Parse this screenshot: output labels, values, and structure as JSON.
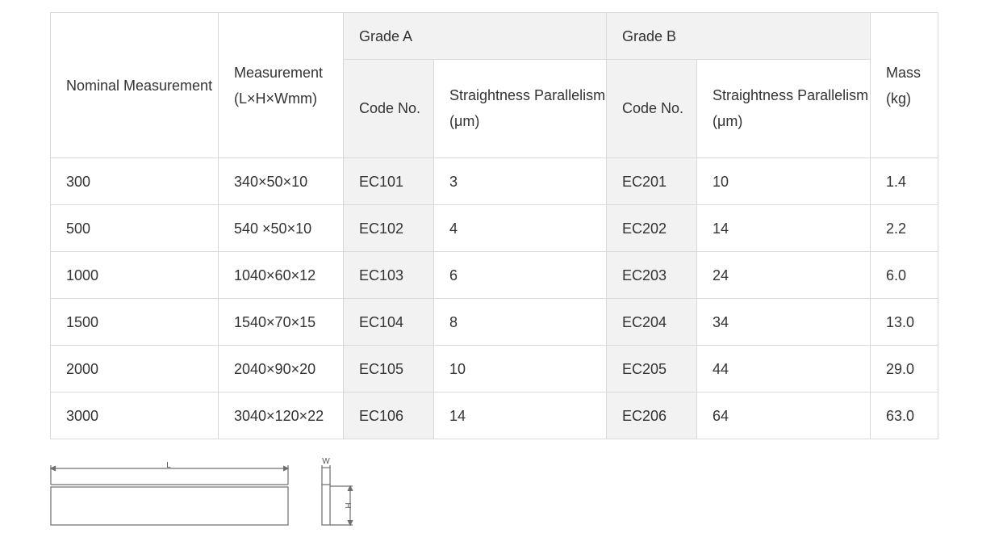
{
  "table": {
    "headers": {
      "nominal": "Nominal Measurement",
      "measurement": "Measurement (L×H×Wmm)",
      "grade_a": "Grade A",
      "grade_b": "Grade B",
      "mass": "Mass (kg)",
      "code": "Code No.",
      "straightness": "Straightness Parallelism (μm)"
    },
    "rows": [
      {
        "nominal": "300",
        "measurement": "340×50×10",
        "a_code": "EC101",
        "a_str": "3",
        "b_code": "EC201",
        "b_str": "10",
        "mass": "1.4"
      },
      {
        "nominal": "500",
        "measurement": "540 ×50×10",
        "a_code": "EC102",
        "a_str": "4",
        "b_code": "EC202",
        "b_str": "14",
        "mass": "2.2"
      },
      {
        "nominal": "1000",
        "measurement": "1040×60×12",
        "a_code": "EC103",
        "a_str": "6",
        "b_code": "EC203",
        "b_str": "24",
        "mass": "6.0"
      },
      {
        "nominal": "1500",
        "measurement": "1540×70×15",
        "a_code": "EC104",
        "a_str": "8",
        "b_code": "EC204",
        "b_str": "34",
        "mass": "13.0"
      },
      {
        "nominal": "2000",
        "measurement": "2040×90×20",
        "a_code": "EC105",
        "a_str": "10",
        "b_code": "EC205",
        "b_str": "44",
        "mass": "29.0"
      },
      {
        "nominal": "3000",
        "measurement": "3040×120×22",
        "a_code": "EC106",
        "a_str": "14",
        "b_code": "EC206",
        "b_str": "64",
        "mass": "63.0"
      }
    ]
  },
  "diagram": {
    "label_l": "L",
    "label_w": "W",
    "label_h": "H"
  }
}
